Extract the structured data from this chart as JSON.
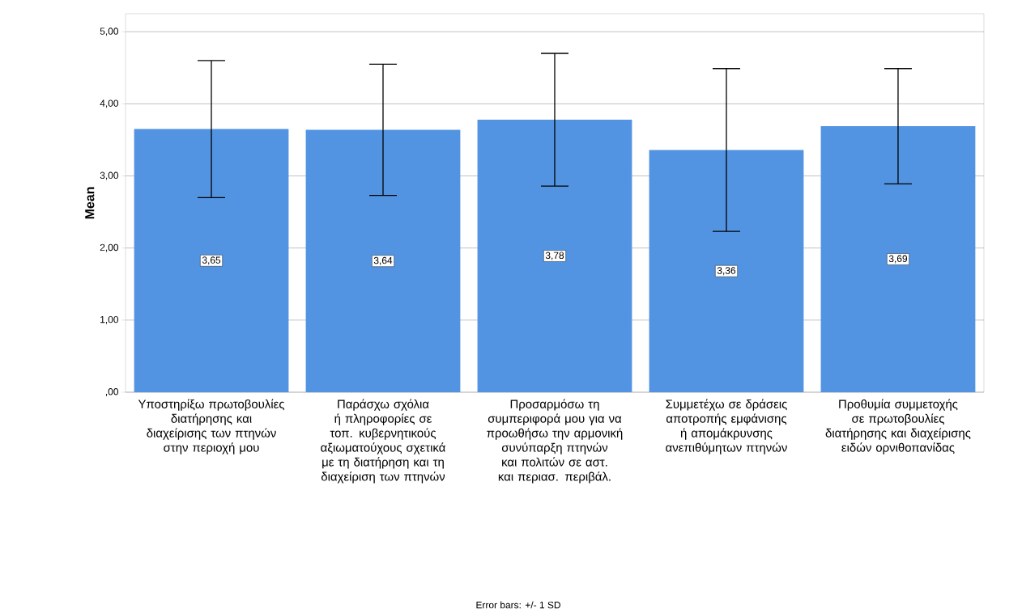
{
  "chart_data": {
    "type": "bar",
    "ylabel": "Mean",
    "categories": [
      "Υποστηρίξω πρωτοβουλίες διατήρησης και διαχείρισης των πτηνών στην περιοχή μου",
      "Παράσχω σχόλια ή πληροφορίες σε τοπ. κυβερνητικούς αξιωματούχους σχετικά με τη διατήρηση και τη διαχείριση των πτηνών",
      "Προσαρμόσω τη συμπεριφορά μου για να προωθήσω την αρμονική συνύπαρξη πτηνών και πολιτών σε αστ. και περιασ. περιβάλ.",
      "Συμμετέχω σε δράσεις αποτροπής εμφάνισης ή απομάκρυνσης ανεπιθύμητων πτηνών",
      "Προθυμία συμμετοχής σε πρωτοβουλίες διατήρησης και διαχείρισης ειδών ορνιθοπανίδας"
    ],
    "values": [
      3.65,
      3.64,
      3.78,
      3.36,
      3.69
    ],
    "value_labels": [
      "3,65",
      "3,64",
      "3,78",
      "3,36",
      "3,69"
    ],
    "errors": [
      0.95,
      0.91,
      0.92,
      1.13,
      0.8
    ],
    "color": "#5294e2",
    "ylim": [
      0,
      5.25
    ],
    "yticks": [
      {
        "value": 0,
        "label": ",00"
      },
      {
        "value": 1,
        "label": "1,00"
      },
      {
        "value": 2,
        "label": "2,00"
      },
      {
        "value": 3,
        "label": "3,00"
      },
      {
        "value": 4,
        "label": "4,00"
      },
      {
        "value": 5,
        "label": "5,00"
      }
    ],
    "grid": "y",
    "annotations": [
      "Error bars: +/- 1 SD"
    ]
  }
}
